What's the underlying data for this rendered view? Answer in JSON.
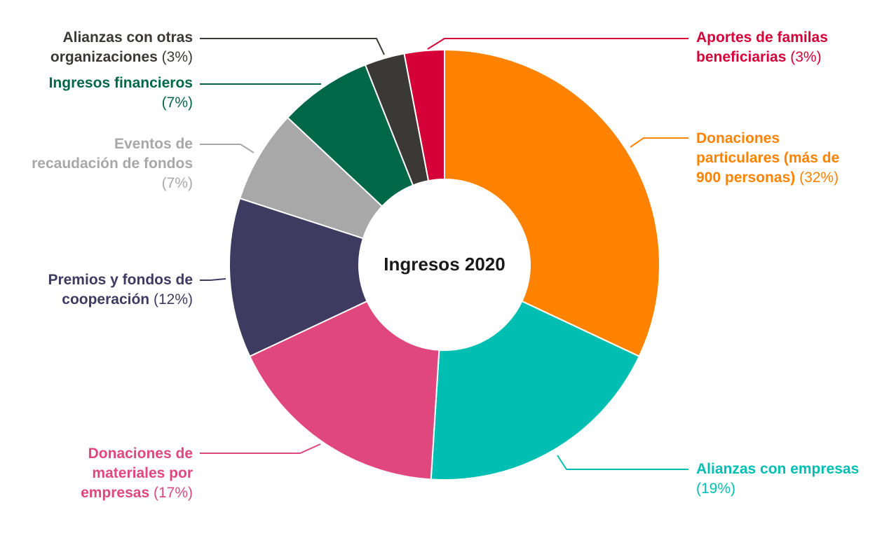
{
  "chart_data": {
    "type": "pie",
    "title": "Ingresos 2020",
    "unit": "%",
    "slices": [
      {
        "name_lines": [
          "Donaciones",
          "particulares (más de",
          "900 personas)"
        ],
        "pct": "(32%)",
        "value": 32,
        "color": "#FF8200"
      },
      {
        "name_lines": [
          "Alianzas con empresas"
        ],
        "pct": "(19%)",
        "value": 19,
        "color": "#00BFB2"
      },
      {
        "name_lines": [
          "Donaciones de",
          "materiales por",
          "empresas"
        ],
        "pct": "(17%)",
        "value": 17,
        "color": "#E0477D"
      },
      {
        "name_lines": [
          "Premios y fondos de",
          "cooperación"
        ],
        "pct": "(12%)",
        "value": 12,
        "color": "#3F3A5F"
      },
      {
        "name_lines": [
          "Eventos de",
          "recaudación de fondos"
        ],
        "pct": "(7%)",
        "value": 7,
        "color": "#A8A8A8"
      },
      {
        "name_lines": [
          "Ingresos financieros"
        ],
        "pct": "(7%)",
        "value": 7,
        "color": "#006847"
      },
      {
        "name_lines": [
          "Alianzas con otras",
          "organizaciones"
        ],
        "pct": "(3%)",
        "value": 3,
        "color": "#3A3935"
      },
      {
        "name_lines": [
          "Aportes de familas",
          "beneficiarias"
        ],
        "pct": "(3%)",
        "value": 3,
        "color": "#D50037"
      }
    ]
  }
}
